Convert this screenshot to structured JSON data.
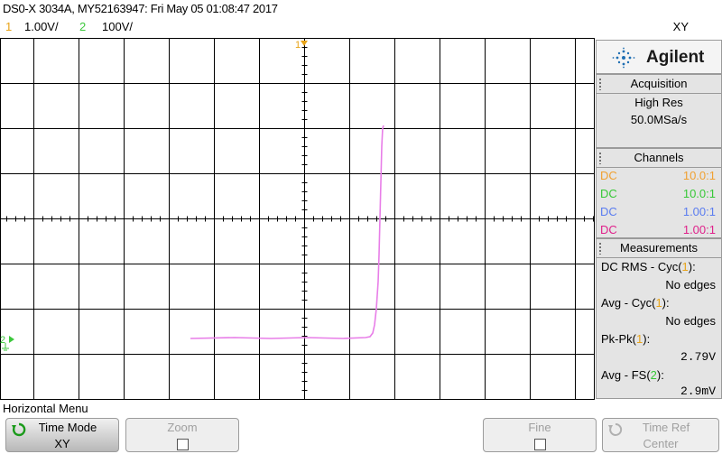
{
  "header": {
    "title": "DS0-X 3034A, MY52163947: Fri May 05 01:08:47 2017",
    "mode": "XY"
  },
  "channels_bar": [
    {
      "num": "1",
      "scale": "1.00V/",
      "color": "#e8a317"
    },
    {
      "num": "2",
      "scale": "100V/",
      "color": "#3cc83c"
    }
  ],
  "plot": {
    "ch1_marker": "1",
    "ch2_marker": "2",
    "trace_color": "#e87ee8",
    "grid_color": "#000000"
  },
  "sidebar": {
    "brand": "Agilent",
    "acquisition": {
      "title": "Acquisition",
      "mode": "High Res",
      "rate": "50.0MSa/s"
    },
    "channels": {
      "title": "Channels",
      "items": [
        {
          "coupling": "DC",
          "probe": "10.0:1",
          "color": "#f0a030"
        },
        {
          "coupling": "DC",
          "probe": "10.0:1",
          "color": "#36c836"
        },
        {
          "coupling": "DC",
          "probe": "1.00:1",
          "color": "#5a7cf0"
        },
        {
          "coupling": "DC",
          "probe": "1.00:1",
          "color": "#e0208a"
        }
      ]
    },
    "measurements": {
      "title": "Measurements",
      "items": [
        {
          "label_pre": "DC RMS - Cyc(",
          "src": "1",
          "label_post": "):",
          "value": "No edges",
          "src_color": "#e8a317"
        },
        {
          "label_pre": "Avg - Cyc(",
          "src": "1",
          "label_post": "):",
          "value": "No edges",
          "src_color": "#e8a317"
        },
        {
          "label_pre": "Pk-Pk(",
          "src": "1",
          "label_post": "):",
          "value": "2.79V",
          "src_color": "#e8a317"
        },
        {
          "label_pre": "Avg - FS(",
          "src": "2",
          "label_post": "):",
          "value": "2.9mV",
          "src_color": "#36c836"
        }
      ]
    }
  },
  "menu": {
    "title": "Horizontal Menu",
    "softkeys": [
      {
        "label": "Time Mode",
        "value": "XY"
      },
      {
        "label": "Zoom"
      },
      {
        "label": "Fine"
      },
      {
        "label": "Time Ref",
        "value": "Center"
      }
    ]
  }
}
